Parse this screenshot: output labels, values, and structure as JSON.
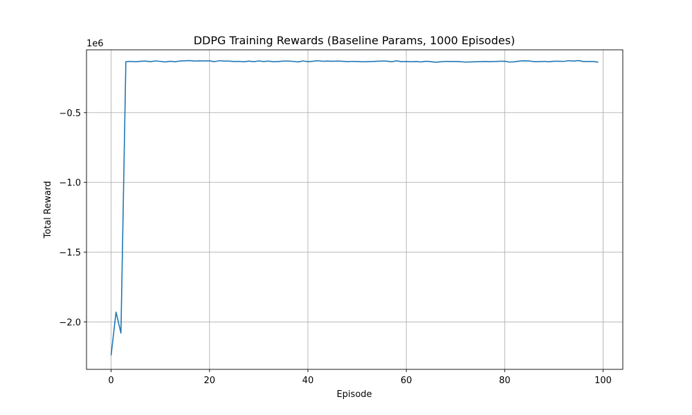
{
  "chart_data": {
    "type": "line",
    "title": "DDPG Training Rewards (Baseline Params, 1000 Episodes)",
    "xlabel": "Episode",
    "ylabel": "Total Reward",
    "y_offset_label": "1e6",
    "xlim": [
      -5,
      104
    ],
    "ylim": [
      -2.34,
      -0.05
    ],
    "x_ticks": [
      0,
      20,
      40,
      60,
      80,
      100
    ],
    "x_tick_labels": [
      "0",
      "20",
      "40",
      "60",
      "80",
      "100"
    ],
    "y_ticks": [
      -2.0,
      -1.5,
      -1.0,
      -0.5
    ],
    "y_tick_labels": [
      "−2.0",
      "−1.5",
      "−1.0",
      "−0.5"
    ],
    "grid": true,
    "line_color": "#1f77b4",
    "series": [
      {
        "x": [
          0,
          1,
          2,
          3,
          4,
          5,
          6,
          7,
          8,
          9,
          10,
          11,
          12,
          13,
          14,
          15,
          16,
          17,
          18,
          19,
          20,
          21,
          22,
          23,
          24,
          25,
          26,
          27,
          28,
          29,
          30,
          31,
          32,
          33,
          34,
          35,
          36,
          37,
          38,
          39,
          40,
          41,
          42,
          43,
          44,
          45,
          46,
          47,
          48,
          49,
          50,
          51,
          52,
          53,
          54,
          55,
          56,
          57,
          58,
          59,
          60,
          61,
          62,
          63,
          64,
          65,
          66,
          67,
          68,
          69,
          70,
          71,
          72,
          73,
          74,
          75,
          76,
          77,
          78,
          79,
          80,
          81,
          82,
          83,
          84,
          85,
          86,
          87,
          88,
          89,
          90,
          91,
          92,
          93,
          94,
          95,
          96,
          97,
          98,
          99
        ],
        "y": [
          -2.24,
          -1.93,
          -2.08,
          -0.135,
          -0.133,
          -0.136,
          -0.132,
          -0.131,
          -0.135,
          -0.13,
          -0.133,
          -0.137,
          -0.132,
          -0.136,
          -0.13,
          -0.129,
          -0.127,
          -0.131,
          -0.129,
          -0.13,
          -0.129,
          -0.135,
          -0.128,
          -0.131,
          -0.131,
          -0.134,
          -0.133,
          -0.136,
          -0.131,
          -0.135,
          -0.13,
          -0.134,
          -0.131,
          -0.136,
          -0.134,
          -0.131,
          -0.131,
          -0.133,
          -0.137,
          -0.13,
          -0.135,
          -0.132,
          -0.128,
          -0.132,
          -0.131,
          -0.132,
          -0.131,
          -0.132,
          -0.135,
          -0.133,
          -0.134,
          -0.136,
          -0.135,
          -0.134,
          -0.132,
          -0.131,
          -0.131,
          -0.136,
          -0.129,
          -0.135,
          -0.134,
          -0.136,
          -0.134,
          -0.137,
          -0.132,
          -0.135,
          -0.139,
          -0.136,
          -0.133,
          -0.134,
          -0.134,
          -0.135,
          -0.138,
          -0.137,
          -0.136,
          -0.135,
          -0.134,
          -0.135,
          -0.134,
          -0.132,
          -0.132,
          -0.138,
          -0.136,
          -0.131,
          -0.129,
          -0.13,
          -0.135,
          -0.135,
          -0.133,
          -0.136,
          -0.132,
          -0.132,
          -0.133,
          -0.128,
          -0.131,
          -0.127,
          -0.134,
          -0.134,
          -0.134,
          -0.139
        ]
      }
    ]
  }
}
